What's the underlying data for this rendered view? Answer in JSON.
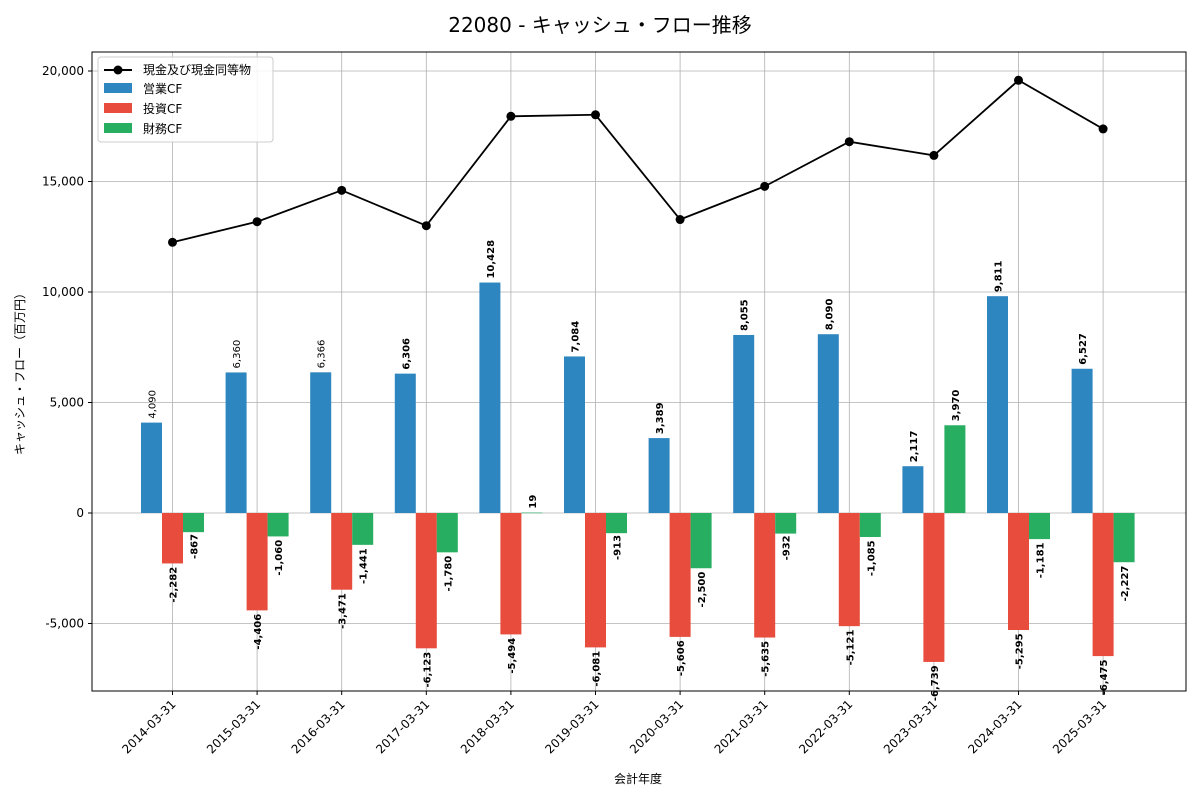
{
  "chart_data": {
    "type": "bar",
    "title": "22080 - キャッシュ・フロー推移",
    "xlabel": "会計年度",
    "ylabel": "キャッシュ・フロー（百万円）",
    "ylim": [
      -8000,
      21000
    ],
    "yticks": [
      -5000,
      0,
      5000,
      10000,
      15000,
      20000
    ],
    "ytick_labels": [
      "-5,000",
      "0",
      "5,000",
      "10,000",
      "15,000",
      "20,000"
    ],
    "grid": true,
    "legend_position": "top-left",
    "categories": [
      "2014-03-31",
      "2015-03-31",
      "2016-03-31",
      "2017-03-31",
      "2018-03-31",
      "2019-03-31",
      "2020-03-31",
      "2021-03-31",
      "2022-03-31",
      "2023-03-31",
      "2024-03-31",
      "2025-03-31"
    ],
    "line_series": {
      "name": "現金及び現金同等物",
      "color": "#000000",
      "values": [
        12250,
        13180,
        14600,
        13000,
        17950,
        18020,
        13280,
        14780,
        16800,
        16180,
        19580,
        17380
      ]
    },
    "series": [
      {
        "name": "営業CF",
        "color": "#2e86c1",
        "values": [
          4090,
          6360,
          6366,
          6306,
          10428,
          7084,
          3389,
          8055,
          8090,
          2117,
          9811,
          6527
        ],
        "labels": [
          "4,090",
          "6,360",
          "6,366",
          "6,306",
          "10,428",
          "7,084",
          "3,389",
          "8,055",
          "8,090",
          "2,117",
          "9,811",
          "6,527"
        ],
        "label_bold": [
          false,
          false,
          false,
          true,
          true,
          true,
          true,
          true,
          true,
          true,
          true,
          true
        ]
      },
      {
        "name": "投資CF",
        "color": "#e74c3c",
        "values": [
          -2282,
          -4406,
          -3471,
          -6123,
          -5494,
          -6081,
          -5606,
          -5635,
          -5121,
          -6739,
          -5295,
          -6475
        ],
        "labels": [
          "-2,282",
          "-4,406",
          "-3,471",
          "-6,123",
          "-5,494",
          "-6,081",
          "-5,606",
          "-5,635",
          "-5,121",
          "-6,739",
          "-5,295",
          "-6,475"
        ],
        "label_bold": [
          true,
          true,
          true,
          true,
          true,
          true,
          true,
          true,
          true,
          true,
          true,
          true
        ]
      },
      {
        "name": "財務CF",
        "color": "#27ae60",
        "values": [
          -867,
          -1060,
          -1441,
          -1780,
          19,
          -913,
          -2500,
          -932,
          -1085,
          3970,
          -1181,
          -2227
        ],
        "labels": [
          "-867",
          "-1,060",
          "-1,441",
          "-1,780",
          "19",
          "-913",
          "-2,500",
          "-932",
          "-1,085",
          "3,970",
          "-1,181",
          "-2,227"
        ],
        "label_bold": [
          true,
          true,
          true,
          true,
          true,
          true,
          true,
          true,
          true,
          true,
          true,
          true
        ]
      }
    ]
  }
}
